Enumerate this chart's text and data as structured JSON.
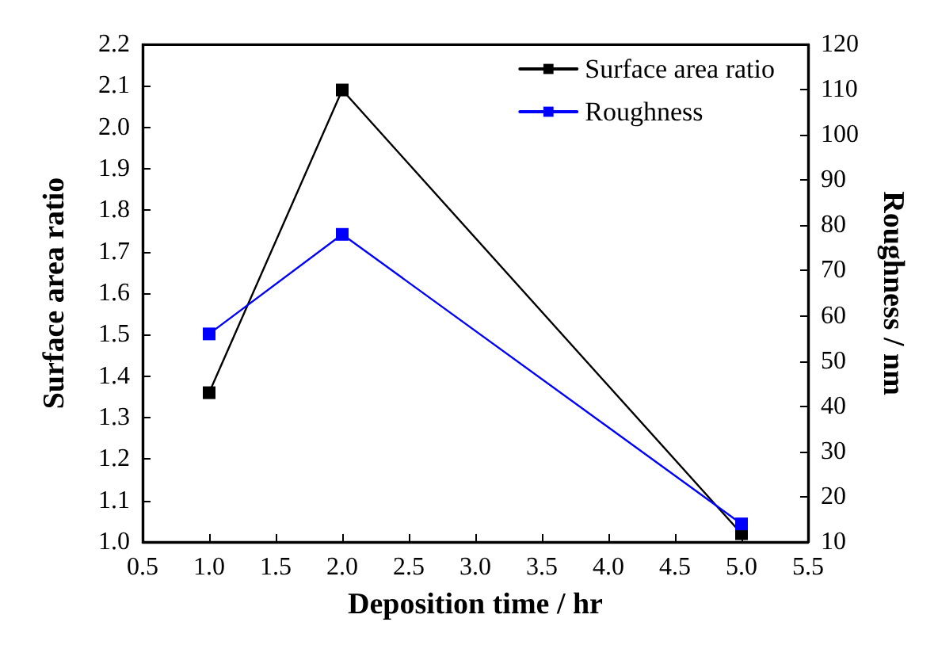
{
  "chart_data": {
    "type": "line",
    "xlabel": "Deposition time / hr",
    "ylabel": "Surface area ratio",
    "y2label": "Roughness / nm",
    "x": [
      1.0,
      2.0,
      5.0
    ],
    "series": [
      {
        "name": "Surface area ratio",
        "color": "#000000",
        "values": [
          1.36,
          2.09,
          1.02
        ]
      },
      {
        "name": "Roughness",
        "color": "#0000ff",
        "values": [
          56,
          78,
          14
        ],
        "axis": "y2"
      }
    ],
    "xlim": [
      0.5,
      5.5
    ],
    "xticks": [
      {
        "value": 0.5,
        "label": "0.5"
      },
      {
        "value": 1.0,
        "label": "1.0"
      },
      {
        "value": 1.5,
        "label": "1.5"
      },
      {
        "value": 2.0,
        "label": "2.0"
      },
      {
        "value": 2.5,
        "label": "2.5"
      },
      {
        "value": 3.0,
        "label": "3.0"
      },
      {
        "value": 3.5,
        "label": "3.5"
      },
      {
        "value": 4.0,
        "label": "4.0"
      },
      {
        "value": 4.5,
        "label": "4.5"
      },
      {
        "value": 5.0,
        "label": "5.0"
      },
      {
        "value": 5.5,
        "label": "5.5"
      }
    ],
    "ylim": [
      1.0,
      2.2
    ],
    "yticks": [
      {
        "value": 1.0,
        "label": "1.0"
      },
      {
        "value": 1.1,
        "label": "1.1"
      },
      {
        "value": 1.2,
        "label": "1.2"
      },
      {
        "value": 1.3,
        "label": "1.3"
      },
      {
        "value": 1.4,
        "label": "1.4"
      },
      {
        "value": 1.5,
        "label": "1.5"
      },
      {
        "value": 1.6,
        "label": "1.6"
      },
      {
        "value": 1.7,
        "label": "1.7"
      },
      {
        "value": 1.8,
        "label": "1.8"
      },
      {
        "value": 1.9,
        "label": "1.9"
      },
      {
        "value": 2.0,
        "label": "2.0"
      },
      {
        "value": 2.1,
        "label": "2.1"
      },
      {
        "value": 2.2,
        "label": "2.2"
      }
    ],
    "y2lim": [
      10,
      120
    ],
    "y2ticks": [
      10,
      20,
      30,
      40,
      50,
      60,
      70,
      80,
      90,
      100,
      110,
      120
    ],
    "grid": false,
    "legend": "top right",
    "marker": "square",
    "line_style": "solid"
  }
}
